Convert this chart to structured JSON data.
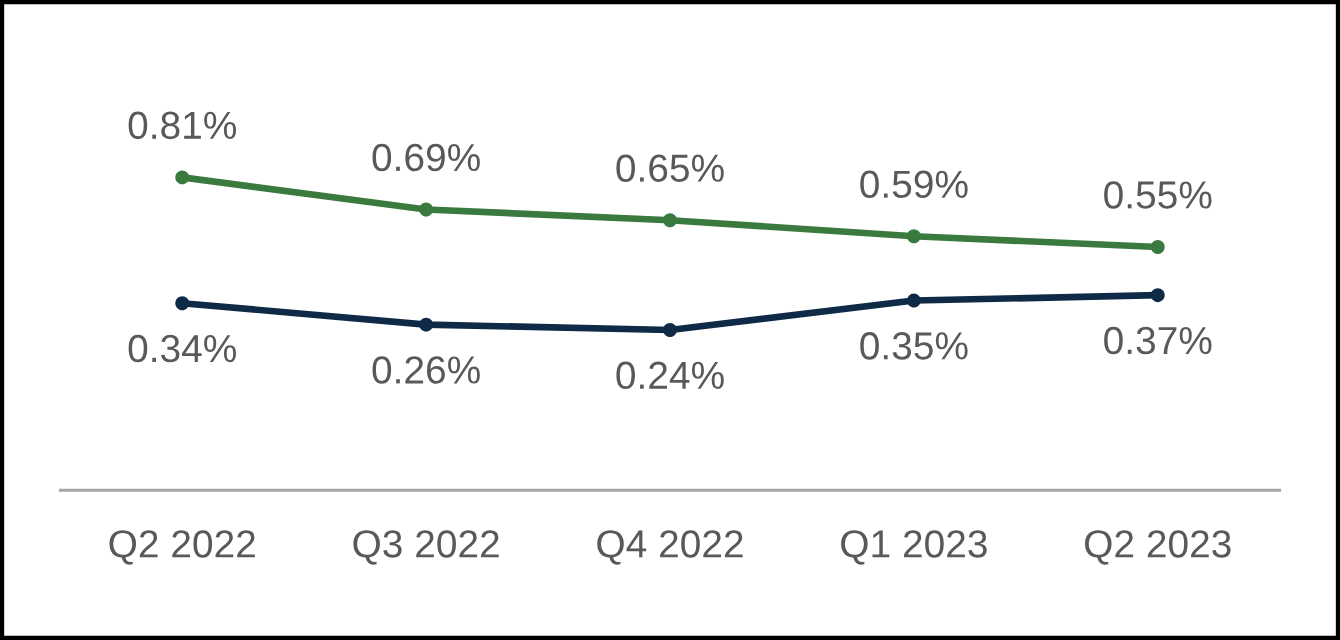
{
  "chart_data": {
    "type": "line",
    "categories": [
      "Q2 2022",
      "Q3 2022",
      "Q4 2022",
      "Q1 2023",
      "Q2 2023"
    ],
    "series": [
      {
        "color": "#3b7a3f",
        "values": [
          0.81,
          0.69,
          0.65,
          0.59,
          0.55
        ],
        "value_labels": [
          "0.81%",
          "0.69%",
          "0.65%",
          "0.59%",
          "0.55%"
        ]
      },
      {
        "color": "#0e2a47",
        "values": [
          0.34,
          0.26,
          0.24,
          0.35,
          0.37
        ],
        "value_labels": [
          "0.34%",
          "0.26%",
          "0.24%",
          "0.35%",
          "0.37%"
        ]
      }
    ],
    "marker": "circle",
    "line_style": "solid",
    "grid": false,
    "legend": false
  }
}
